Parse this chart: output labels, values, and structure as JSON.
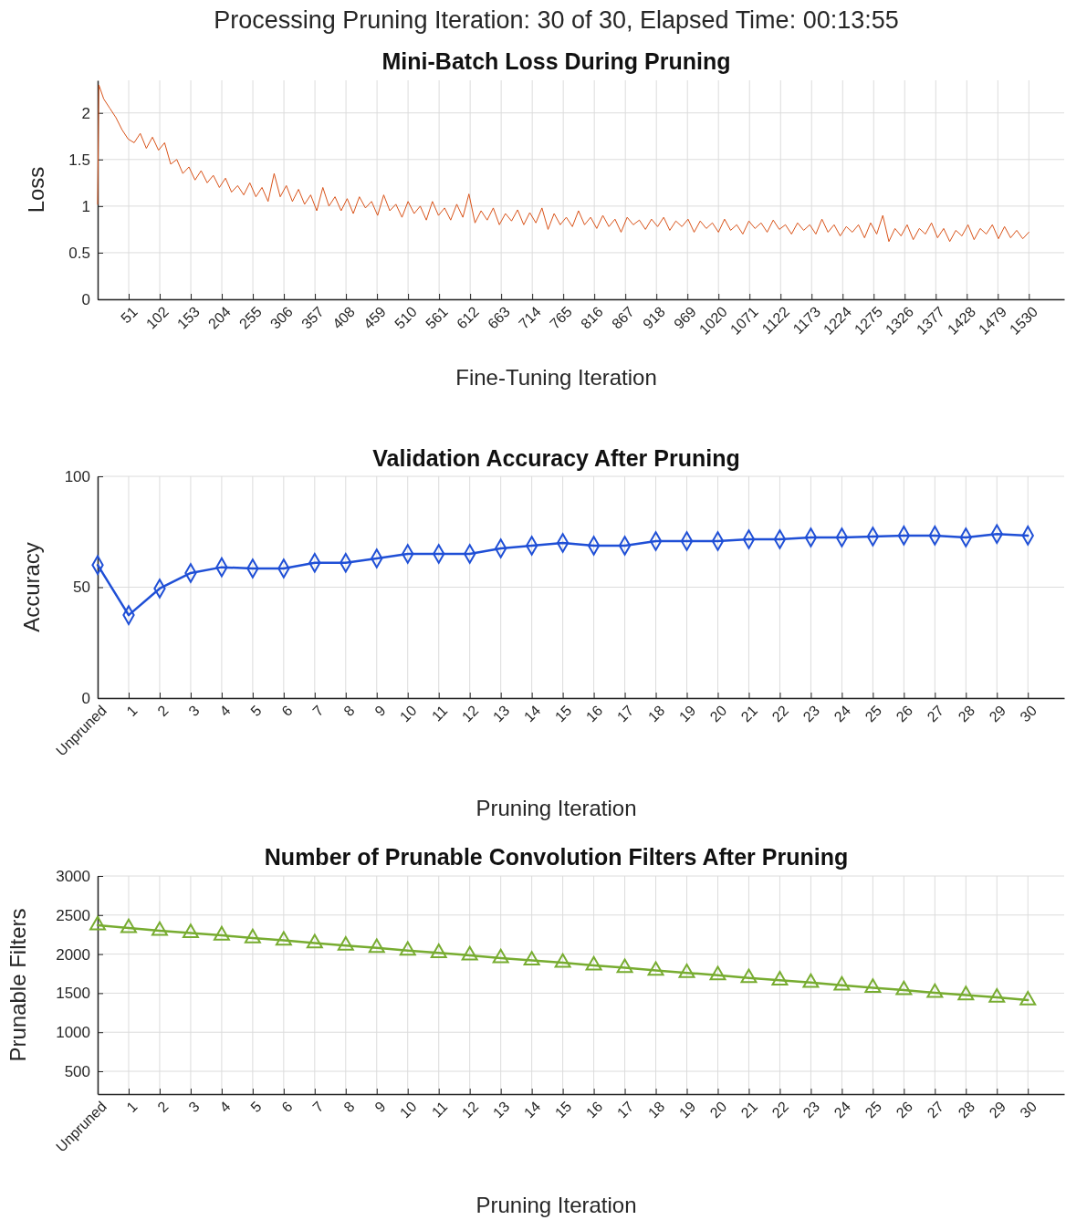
{
  "chart_data": [
    {
      "type": "line",
      "title": "Processing Pruning Iteration: 30 of 30, Elapsed Time: 00:13:55",
      "subtitle": "Mini-Batch Loss During Pruning",
      "xlabel": "Fine-Tuning Iteration",
      "ylabel": "Loss",
      "xlim": [
        0,
        1588
      ],
      "ylim": [
        0,
        2.35
      ],
      "xticks": [
        51,
        102,
        153,
        204,
        255,
        306,
        357,
        408,
        459,
        510,
        561,
        612,
        663,
        714,
        765,
        816,
        867,
        918,
        969,
        1020,
        1071,
        1122,
        1173,
        1224,
        1275,
        1326,
        1377,
        1428,
        1479,
        1530
      ],
      "yticks": [
        0,
        0.5,
        1,
        1.5,
        2
      ],
      "grid": true,
      "marker": "none",
      "line_style": "solid",
      "x": [
        0,
        2,
        10,
        20,
        30,
        40,
        50,
        60,
        70,
        80,
        90,
        100,
        110,
        120,
        130,
        140,
        150,
        160,
        170,
        180,
        190,
        200,
        210,
        220,
        230,
        240,
        250,
        260,
        270,
        280,
        290,
        300,
        310,
        320,
        330,
        340,
        350,
        360,
        370,
        380,
        390,
        400,
        410,
        420,
        430,
        440,
        450,
        460,
        470,
        480,
        490,
        500,
        510,
        520,
        530,
        540,
        550,
        560,
        570,
        580,
        590,
        600,
        610,
        620,
        630,
        640,
        650,
        660,
        670,
        680,
        690,
        700,
        710,
        720,
        730,
        740,
        750,
        760,
        770,
        780,
        790,
        800,
        810,
        820,
        830,
        840,
        850,
        860,
        870,
        880,
        890,
        900,
        910,
        920,
        930,
        940,
        950,
        960,
        970,
        980,
        990,
        1000,
        1010,
        1020,
        1030,
        1040,
        1050,
        1060,
        1070,
        1080,
        1090,
        1100,
        1110,
        1120,
        1130,
        1140,
        1150,
        1160,
        1170,
        1180,
        1190,
        1200,
        1210,
        1220,
        1230,
        1240,
        1250,
        1260,
        1270,
        1280,
        1290,
        1300,
        1310,
        1320,
        1330,
        1340,
        1350,
        1360,
        1370,
        1380,
        1390,
        1400,
        1410,
        1420,
        1430,
        1440,
        1450,
        1460,
        1470,
        1480,
        1490,
        1500,
        1510,
        1520,
        1530
      ],
      "series": [
        {
          "color": "#d95319",
          "values": [
            1.02,
            2.3,
            2.15,
            2.05,
            1.95,
            1.82,
            1.72,
            1.68,
            1.78,
            1.62,
            1.74,
            1.6,
            1.68,
            1.45,
            1.5,
            1.35,
            1.42,
            1.28,
            1.38,
            1.25,
            1.33,
            1.2,
            1.3,
            1.15,
            1.22,
            1.12,
            1.25,
            1.1,
            1.2,
            1.05,
            1.35,
            1.1,
            1.22,
            1.05,
            1.18,
            1.02,
            1.12,
            0.95,
            1.2,
            1.0,
            1.1,
            0.95,
            1.08,
            0.92,
            1.1,
            0.98,
            1.05,
            0.9,
            1.12,
            0.95,
            1.02,
            0.88,
            1.05,
            0.92,
            1.0,
            0.85,
            1.05,
            0.9,
            0.98,
            0.85,
            1.02,
            0.88,
            1.13,
            0.82,
            0.95,
            0.85,
            0.98,
            0.8,
            0.92,
            0.84,
            0.96,
            0.8,
            0.93,
            0.82,
            0.98,
            0.75,
            0.92,
            0.8,
            0.88,
            0.78,
            0.95,
            0.8,
            0.88,
            0.76,
            0.9,
            0.78,
            0.86,
            0.72,
            0.88,
            0.8,
            0.85,
            0.75,
            0.86,
            0.78,
            0.88,
            0.74,
            0.84,
            0.78,
            0.86,
            0.72,
            0.84,
            0.76,
            0.82,
            0.72,
            0.86,
            0.74,
            0.8,
            0.7,
            0.84,
            0.76,
            0.82,
            0.72,
            0.85,
            0.75,
            0.8,
            0.7,
            0.82,
            0.74,
            0.8,
            0.7,
            0.86,
            0.72,
            0.8,
            0.68,
            0.78,
            0.72,
            0.8,
            0.66,
            0.82,
            0.7,
            0.9,
            0.62,
            0.76,
            0.68,
            0.8,
            0.64,
            0.76,
            0.7,
            0.82,
            0.66,
            0.76,
            0.62,
            0.74,
            0.68,
            0.8,
            0.64,
            0.76,
            0.7,
            0.8,
            0.65,
            0.78,
            0.66,
            0.74,
            0.65,
            0.72
          ]
        }
      ]
    },
    {
      "type": "line",
      "title": "Validation Accuracy After Pruning",
      "xlabel": "Pruning Iteration",
      "ylabel": "Accuracy",
      "xlim": [
        0,
        31.17
      ],
      "ylim": [
        0,
        100
      ],
      "xticks": [
        {
          "value": 0,
          "label": "Unpruned"
        },
        1,
        2,
        3,
        4,
        5,
        6,
        7,
        8,
        9,
        10,
        11,
        12,
        13,
        14,
        15,
        16,
        17,
        18,
        19,
        20,
        21,
        22,
        23,
        24,
        25,
        26,
        27,
        28,
        29,
        30
      ],
      "yticks": [
        0,
        50,
        100
      ],
      "grid": true,
      "marker": "diamond",
      "line_style": "solid",
      "x": [
        0,
        1,
        2,
        3,
        4,
        5,
        6,
        7,
        8,
        9,
        10,
        11,
        12,
        13,
        14,
        15,
        16,
        17,
        18,
        19,
        20,
        21,
        22,
        23,
        24,
        25,
        26,
        27,
        28,
        29,
        30
      ],
      "series": [
        {
          "color": "#1f4fd6",
          "values": [
            60,
            37.4,
            49.4,
            56.4,
            59,
            58.4,
            58.4,
            61,
            61,
            63,
            65,
            65,
            65,
            67.5,
            68.7,
            70,
            68.7,
            68.7,
            70.8,
            70.8,
            70.8,
            71.6,
            71.6,
            72.4,
            72.4,
            72.8,
            73.3,
            73.3,
            72.4,
            74,
            73.3
          ]
        }
      ]
    },
    {
      "type": "line",
      "title": "Number of Prunable Convolution Filters After Pruning",
      "xlabel": "Pruning Iteration",
      "ylabel": "Prunable Filters",
      "xlim": [
        0,
        31.17
      ],
      "ylim": [
        208,
        3000
      ],
      "xticks": [
        {
          "value": 0,
          "label": "Unpruned"
        },
        1,
        2,
        3,
        4,
        5,
        6,
        7,
        8,
        9,
        10,
        11,
        12,
        13,
        14,
        15,
        16,
        17,
        18,
        19,
        20,
        21,
        22,
        23,
        24,
        25,
        26,
        27,
        28,
        29,
        30
      ],
      "yticks": [
        500,
        1000,
        1500,
        2000,
        2500,
        3000
      ],
      "grid": true,
      "marker": "triangle",
      "line_style": "solid",
      "x": [
        0,
        1,
        2,
        3,
        4,
        5,
        6,
        7,
        8,
        9,
        10,
        11,
        12,
        13,
        14,
        15,
        16,
        17,
        18,
        19,
        20,
        21,
        22,
        23,
        24,
        25,
        26,
        27,
        28,
        29,
        30
      ],
      "series": [
        {
          "color": "#77ac30",
          "values": [
            2370,
            2335,
            2300,
            2270,
            2240,
            2205,
            2175,
            2140,
            2110,
            2080,
            2045,
            2015,
            1985,
            1950,
            1920,
            1890,
            1855,
            1825,
            1790,
            1760,
            1730,
            1695,
            1665,
            1635,
            1600,
            1570,
            1540,
            1505,
            1475,
            1445,
            1410
          ]
        }
      ]
    }
  ]
}
